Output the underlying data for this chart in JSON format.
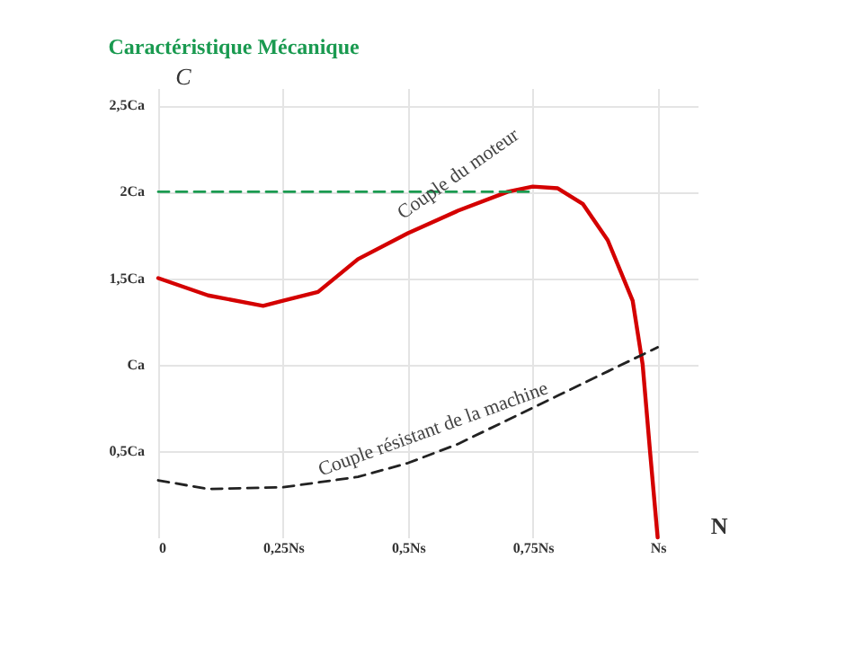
{
  "chart_data": {
    "type": "line",
    "title": "Caractéristique Mécanique",
    "xlabel": "N",
    "ylabel": "C",
    "xlim": [
      0,
      1.08
    ],
    "ylim": [
      0,
      2.6
    ],
    "xticks": [
      {
        "value": 0,
        "label": "0"
      },
      {
        "value": 0.25,
        "label": "0,25Ns"
      },
      {
        "value": 0.5,
        "label": "0,5Ns"
      },
      {
        "value": 0.75,
        "label": "0,75Ns"
      },
      {
        "value": 1,
        "label": "Ns"
      }
    ],
    "yticks": [
      {
        "value": 0.5,
        "label": "0,5Ca"
      },
      {
        "value": 1,
        "label": "Ca"
      },
      {
        "value": 1.5,
        "label": "1,5Ca"
      },
      {
        "value": 2,
        "label": "2Ca"
      },
      {
        "value": 2.5,
        "label": "2,5Ca"
      }
    ],
    "grid": true,
    "series": [
      {
        "color": "#d40000",
        "line_style": "solid",
        "x": [
          0,
          0.1,
          0.21,
          0.25,
          0.32,
          0.4,
          0.5,
          0.6,
          0.7,
          0.75,
          0.8,
          0.85,
          0.9,
          0.95,
          0.97,
          0.985,
          1.0
        ],
        "values": [
          1.5,
          1.4,
          1.34,
          1.37,
          1.42,
          1.61,
          1.76,
          1.89,
          2.0,
          2.03,
          2.02,
          1.93,
          1.72,
          1.37,
          1.0,
          0.49,
          0
        ]
      },
      {
        "color": "#222222",
        "line_style": "dashed",
        "x": [
          0,
          0.1,
          0.25,
          0.4,
          0.5,
          0.6,
          0.7,
          0.8,
          0.9,
          1.0
        ],
        "values": [
          0.33,
          0.28,
          0.29,
          0.35,
          0.43,
          0.54,
          0.68,
          0.82,
          0.96,
          1.1
        ]
      },
      {
        "color": "#1a9a50",
        "line_style": "dashed",
        "x": [
          0,
          0.75
        ],
        "values": [
          2,
          2
        ]
      }
    ],
    "annotations": [
      "Couple du moteur",
      "Couple résistant de la machine"
    ]
  }
}
